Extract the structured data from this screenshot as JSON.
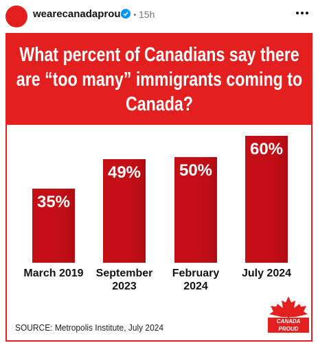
{
  "post": {
    "username": "wearecanadaproud",
    "time": "15h"
  },
  "chart_data": {
    "type": "bar",
    "title": "What percent of Canadians say there are “too many” immigrants coming to Canada?",
    "categories": [
      "March 2019",
      "September 2023",
      "February 2024",
      "July 2024"
    ],
    "values": [
      35,
      49,
      50,
      60
    ],
    "value_labels": [
      "35%",
      "49%",
      "50%",
      "60%"
    ],
    "color": "#c50f16",
    "source": "SOURCE: Metropolis Institute, July 2024",
    "logo": "CANADA PROUD"
  }
}
